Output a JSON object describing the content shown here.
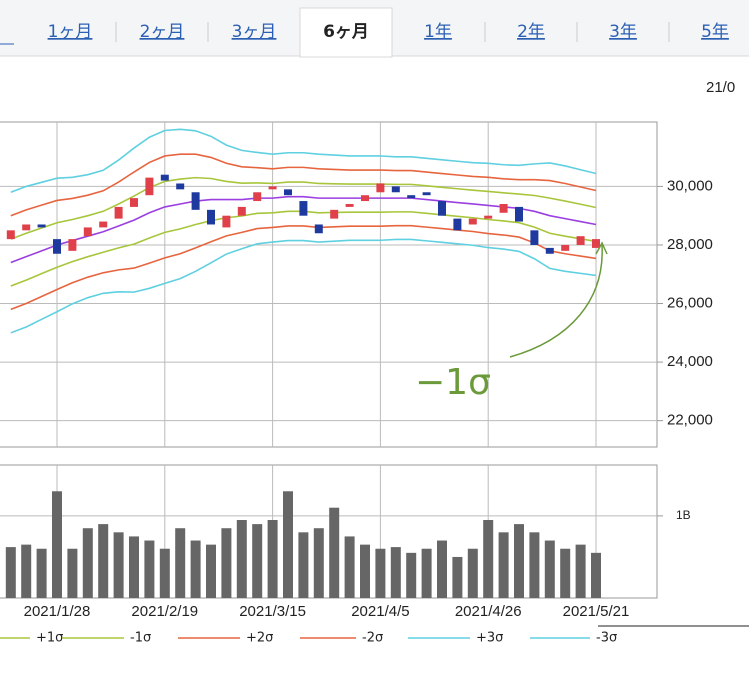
{
  "tabs": [
    "1ヶ月",
    "2ヶ月",
    "3ヶ月",
    "6ヶ月",
    "1年",
    "2年",
    "3年",
    "5年"
  ],
  "active_tab": 3,
  "date_label": "21/0",
  "chart_data": [
    {
      "type": "candlestick",
      "annotation": "−1σ",
      "ylim": [
        21100,
        32200
      ],
      "yticks": [
        {
          "value": 22000,
          "label": "22,000"
        },
        {
          "value": 24000,
          "label": "24,000"
        },
        {
          "value": 26000,
          "label": "26,000"
        },
        {
          "value": 28000,
          "label": "28,000"
        },
        {
          "value": 30000,
          "label": "30,000"
        }
      ],
      "up_color": "#e0404a",
      "down_color": "#1f3a9e",
      "open": [
        28200,
        28500,
        28700,
        28200,
        27800,
        28300,
        28600,
        28900,
        29300,
        29700,
        30400,
        30100,
        29800,
        29200,
        28600,
        29000,
        29500,
        29900,
        29900,
        29500,
        28700,
        28900,
        29300,
        29500,
        29800,
        30000,
        29700,
        29800,
        29500,
        28900,
        28700,
        28900,
        29100,
        29300,
        28500,
        27900,
        27800,
        28000,
        27900
      ],
      "close": [
        28500,
        28700,
        28600,
        27700,
        28200,
        28600,
        28800,
        29300,
        29600,
        30300,
        30200,
        29900,
        29200,
        28700,
        29000,
        29300,
        29800,
        30000,
        29700,
        29000,
        28400,
        29200,
        29400,
        29700,
        30100,
        29800,
        29600,
        29700,
        29000,
        28500,
        28900,
        29000,
        29400,
        28800,
        28000,
        27700,
        28000,
        28300,
        28200
      ],
      "series": [
        {
          "color": "#9b3fe0",
          "values": [
            27400,
            27600,
            27800,
            28000,
            28150,
            28300,
            28450,
            28650,
            28850,
            29100,
            29300,
            29400,
            29500,
            29550,
            29550,
            29550,
            29600,
            29600,
            29650,
            29650,
            29600,
            29600,
            29600,
            29600,
            29600,
            29600,
            29600,
            29550,
            29500,
            29450,
            29400,
            29350,
            29300,
            29250,
            29150,
            29000,
            28900,
            28800,
            28700
          ]
        },
        {
          "name": "+1σ",
          "color": "#a8c63c",
          "values": [
            28200,
            28400,
            28580,
            28760,
            28870,
            29000,
            29150,
            29400,
            29670,
            29960,
            30170,
            30250,
            30300,
            30270,
            30170,
            30110,
            30120,
            30100,
            30150,
            30150,
            30100,
            30090,
            30080,
            30080,
            30080,
            30070,
            30070,
            30020,
            29970,
            29920,
            29870,
            29830,
            29780,
            29740,
            29690,
            29600,
            29500,
            29390,
            29280
          ]
        },
        {
          "name": "-1σ",
          "color": "#a8c63c",
          "values": [
            26600,
            26800,
            27020,
            27240,
            27430,
            27600,
            27750,
            27900,
            28030,
            28240,
            28430,
            28550,
            28700,
            28830,
            28930,
            28990,
            29080,
            29100,
            29150,
            29150,
            29100,
            29110,
            29120,
            29120,
            29120,
            29130,
            29130,
            29080,
            29030,
            28980,
            28930,
            28870,
            28820,
            28760,
            28610,
            28400,
            28300,
            28210,
            28120
          ]
        },
        {
          "name": "+2σ",
          "color": "#e6653f",
          "values": [
            29000,
            29200,
            29360,
            29520,
            29590,
            29700,
            29850,
            30150,
            30490,
            30820,
            31040,
            31100,
            31100,
            30990,
            30790,
            30670,
            30640,
            30600,
            30650,
            30650,
            30600,
            30580,
            30560,
            30560,
            30560,
            30540,
            30540,
            30490,
            30440,
            30390,
            30340,
            30310,
            30260,
            30230,
            30230,
            30200,
            30100,
            29980,
            29860
          ]
        },
        {
          "name": "-2σ",
          "color": "#e6653f",
          "values": [
            25800,
            26000,
            26240,
            26480,
            26710,
            26900,
            27050,
            27150,
            27210,
            27380,
            27560,
            27700,
            27900,
            28110,
            28310,
            28430,
            28560,
            28600,
            28650,
            28650,
            28600,
            28620,
            28640,
            28640,
            28640,
            28660,
            28660,
            28610,
            28560,
            28510,
            28460,
            28390,
            28340,
            28270,
            28070,
            27800,
            27700,
            27620,
            27540
          ]
        },
        {
          "name": "+3σ",
          "color": "#5fd0e0",
          "values": [
            29800,
            30000,
            30140,
            30280,
            30310,
            30400,
            30550,
            30900,
            31310,
            31680,
            31910,
            31950,
            31900,
            31710,
            31410,
            31230,
            31160,
            31100,
            31150,
            31150,
            31100,
            31070,
            31040,
            31040,
            31040,
            31010,
            31010,
            30960,
            30910,
            30860,
            30810,
            30790,
            30740,
            30720,
            30770,
            30800,
            30700,
            30570,
            30440
          ]
        },
        {
          "name": "-3σ",
          "color": "#5fd0e0",
          "values": [
            25000,
            25200,
            25460,
            25720,
            25990,
            26200,
            26350,
            26400,
            26390,
            26520,
            26690,
            26850,
            27100,
            27390,
            27690,
            27870,
            28040,
            28100,
            28150,
            28150,
            28100,
            28130,
            28160,
            28160,
            28160,
            28190,
            28190,
            28140,
            28090,
            28040,
            27990,
            27910,
            27860,
            27780,
            27530,
            27200,
            27100,
            27030,
            26960
          ]
        }
      ]
    },
    {
      "type": "bar",
      "color": "#666666",
      "ylim": [
        0,
        1.62
      ],
      "yticks": [
        {
          "value": 1,
          "label": "1B"
        }
      ],
      "categories": [
        null,
        null,
        null,
        "2021/1/28",
        null,
        null,
        null,
        null,
        null,
        null,
        "2021/2/19",
        null,
        null,
        null,
        null,
        null,
        null,
        "2021/3/15",
        null,
        null,
        null,
        null,
        null,
        null,
        "2021/4/5",
        null,
        null,
        null,
        null,
        null,
        null,
        "2021/4/26",
        null,
        null,
        null,
        null,
        null,
        null,
        "2021/5/21"
      ],
      "values": [
        0.62,
        0.65,
        0.6,
        1.3,
        0.6,
        0.85,
        0.9,
        0.8,
        0.75,
        0.7,
        0.6,
        0.85,
        0.7,
        0.65,
        0.85,
        0.95,
        0.9,
        0.95,
        1.3,
        0.8,
        0.85,
        1.1,
        0.75,
        0.65,
        0.6,
        0.62,
        0.55,
        0.6,
        0.7,
        0.5,
        0.6,
        0.95,
        0.8,
        0.9,
        0.8,
        0.7,
        0.6,
        0.65,
        0.55
      ]
    }
  ]
}
